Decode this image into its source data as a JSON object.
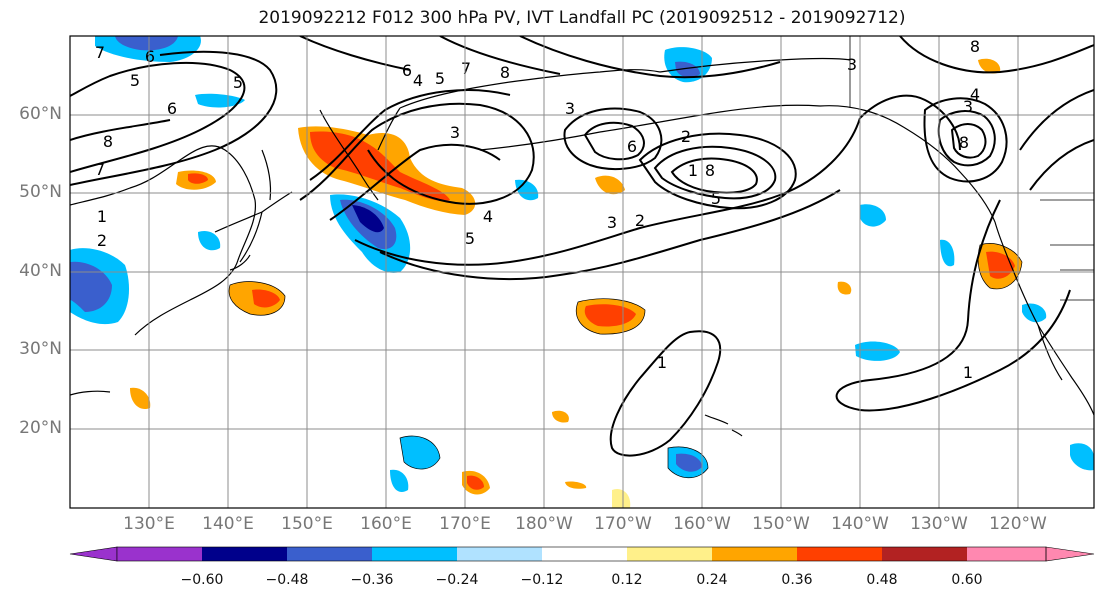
{
  "title": "2019092212 F012 300 hPa PV, IVT Landfall PC (2019092512 - 2019092712)",
  "lat_labels": [
    "60°N",
    "50°N",
    "40°N",
    "30°N",
    "20°N"
  ],
  "lon_labels": [
    "130°E",
    "140°E",
    "150°E",
    "160°E",
    "170°E",
    "180°W",
    "170°W",
    "160°W",
    "150°W",
    "140°W",
    "130°W",
    "120°W"
  ],
  "colorbar": {
    "tick_labels": [
      "−0.60",
      "−0.48",
      "−0.36",
      "−0.24",
      "−0.12",
      "0.12",
      "0.24",
      "0.36",
      "0.48",
      "0.60"
    ],
    "colors": [
      "#9a32cd",
      "#00008b",
      "#3a5fcd",
      "#00bfff",
      "#b0e2ff",
      "#ffffff",
      "#fff08a",
      "#ffa500",
      "#ff4000",
      "#b22222",
      "#ff88b0"
    ]
  },
  "contour_labels": [
    "7",
    "5",
    "6",
    "5",
    "6",
    "4",
    "5",
    "7",
    "8",
    "3",
    "8",
    "7",
    "1",
    "2",
    "6",
    "3",
    "3",
    "4",
    "5",
    "3",
    "2",
    "8",
    "6",
    "2",
    "1",
    "8",
    "3",
    "8",
    "4",
    "5",
    "1",
    "1"
  ],
  "colors": {
    "land": "#000000",
    "grid": "#8c8c8c",
    "contour": "#000000"
  }
}
